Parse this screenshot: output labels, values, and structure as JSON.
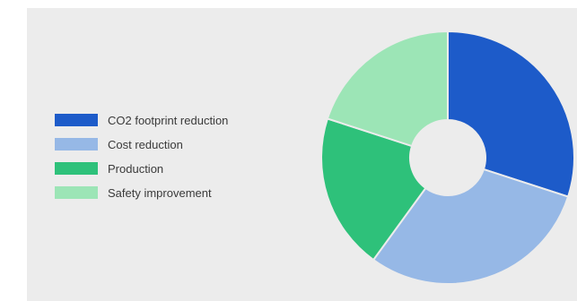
{
  "chart_data": {
    "type": "pie",
    "donut": true,
    "categories": [
      "CO2 footprint reduction",
      "Cost reduction",
      "Production",
      "Safety improvement"
    ],
    "values": [
      30,
      30,
      20,
      20
    ],
    "colors": [
      "#1d5bc9",
      "#96b8e6",
      "#2ec17a",
      "#9ce5b6"
    ],
    "legend_position": "left",
    "title": ""
  }
}
